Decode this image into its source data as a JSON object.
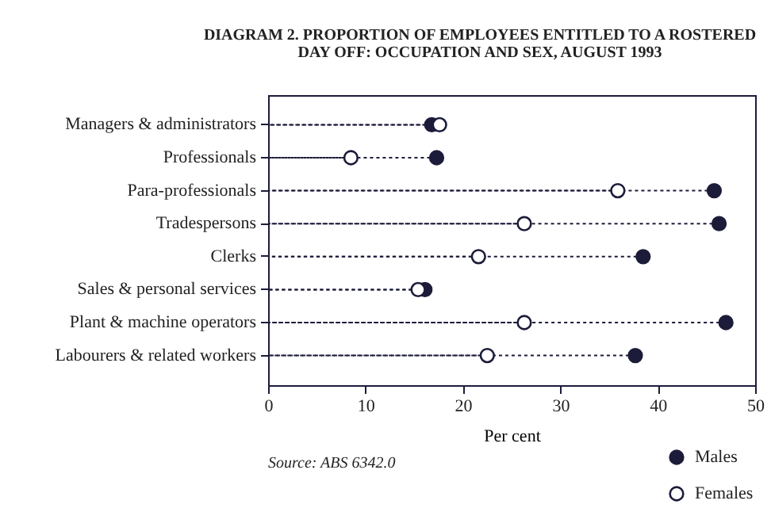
{
  "chart_data": {
    "type": "lollipop",
    "orientation": "horizontal",
    "title": "DIAGRAM 2. PROPORTION OF EMPLOYEES ENTITLED TO A ROSTERED DAY OFF: OCCUPATION AND SEX, AUGUST 1993",
    "xlabel": "Per cent",
    "annotations": [
      "Source: ABS 6342.0"
    ],
    "categories": [
      "Managers & administrators",
      "Professionals",
      "Para-professionals",
      "Tradespersons",
      "Clerks",
      "Sales & personal services",
      "Plant & machine operators",
      "Labourers & related workers"
    ],
    "series": [
      {
        "name": "Males",
        "color": "#1c1c3a",
        "values": [
          16.8,
          17.3,
          45.8,
          46.3,
          38.5,
          16.1,
          47.0,
          37.7
        ]
      },
      {
        "name": "Females",
        "color": "#ffffff",
        "values": [
          17.6,
          8.5,
          35.9,
          26.3,
          21.6,
          15.4,
          26.3,
          22.5
        ]
      }
    ],
    "xlim": [
      0,
      50
    ],
    "xticks": [
      0,
      10,
      20,
      30,
      40,
      50
    ],
    "grid": false,
    "legend": "bottom right",
    "marker": "circle",
    "line_style": "dotted"
  }
}
